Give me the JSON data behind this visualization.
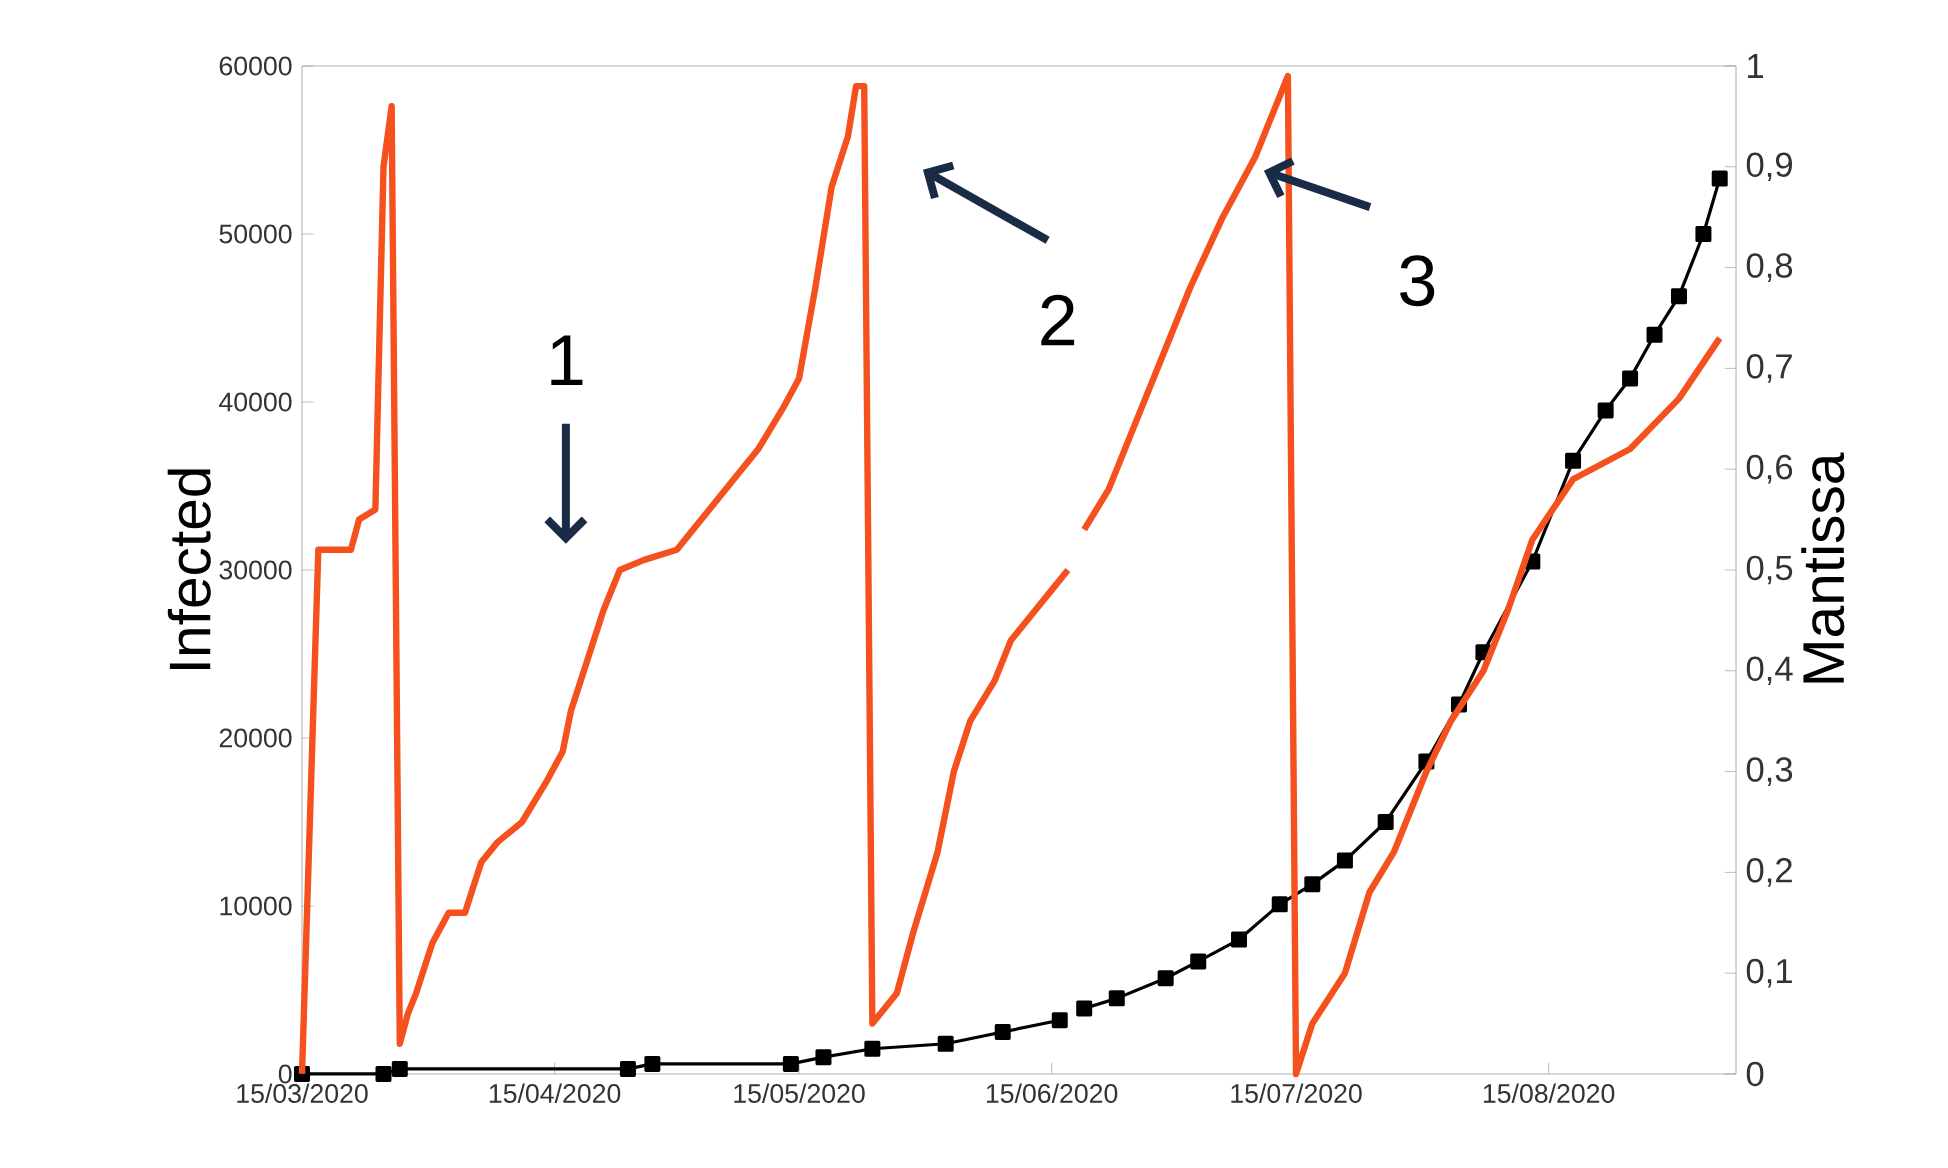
{
  "chart_data": {
    "type": "line",
    "ylabel": "Infected",
    "y2label": "Mantissa",
    "xlim": [
      "2020-03-15",
      "2020-09-07"
    ],
    "xticks": [
      {
        "value": "2020-03-15",
        "label": "15/03/2020"
      },
      {
        "value": "2020-04-15",
        "label": "15/04/2020"
      },
      {
        "value": "2020-05-15",
        "label": "15/05/2020"
      },
      {
        "value": "2020-06-15",
        "label": "15/06/2020"
      },
      {
        "value": "2020-07-15",
        "label": "15/07/2020"
      },
      {
        "value": "2020-08-15",
        "label": "15/08/2020"
      }
    ],
    "ylim": [
      0,
      60000
    ],
    "yticks": [
      0,
      10000,
      20000,
      30000,
      40000,
      50000,
      60000
    ],
    "y2lim": [
      0,
      1
    ],
    "y2ticks": [
      0,
      {
        "value": 0.1,
        "label": "0,1"
      },
      {
        "value": 0.2,
        "label": "0,2"
      },
      {
        "value": 0.3,
        "label": "0,3"
      },
      {
        "value": 0.4,
        "label": "0,4"
      },
      {
        "value": 0.5,
        "label": "0,5"
      },
      {
        "value": 0.6,
        "label": "0,6"
      },
      {
        "value": 0.7,
        "label": "0,7"
      },
      {
        "value": 0.8,
        "label": "0,8"
      },
      {
        "value": 0.9,
        "label": "0,9"
      },
      1
    ],
    "annotations": [
      "1",
      "2",
      {
        "text": "3",
        "x": "2020-07-10",
        "y": 54600
      }
    ],
    "series": [
      {
        "color": "#f4511e",
        "axis": "y2",
        "x": [
          "2020-03-15",
          "2020-03-17",
          "2020-03-21",
          "2020-03-22",
          "2020-03-24",
          "2020-03-25",
          "2020-03-26",
          "2020-03-27",
          "2020-03-28",
          "2020-03-29",
          "2020-03-31",
          "2020-04-02",
          "2020-04-04",
          "2020-04-06",
          "2020-04-08",
          "2020-04-11",
          "2020-04-14",
          "2020-04-16",
          "2020-04-17",
          "2020-04-19",
          "2020-04-21",
          "2020-04-23",
          "2020-04-26",
          "2020-04-30",
          "2020-05-03",
          "2020-05-06",
          "2020-05-10",
          "2020-05-13",
          "2020-05-15",
          "2020-05-17",
          "2020-05-19",
          "2020-05-21",
          "2020-05-22",
          "2020-05-23",
          "2020-05-24",
          "2020-05-27",
          "2020-05-29",
          "2020-06-01",
          "2020-06-03",
          "2020-06-05",
          "2020-06-08",
          "2020-06-10",
          "2020-06-13",
          "2020-06-15",
          "2020-06-17",
          "2020-06-18",
          "2020-06-19",
          "2020-06-22",
          "2020-06-25",
          "2020-06-29",
          "2020-07-02",
          "2020-07-06",
          "2020-07-10",
          "2020-07-13",
          "2020-07-14",
          "2020-07-15",
          "2020-07-17",
          "2020-07-21",
          "2020-07-24",
          "2020-07-27",
          "2020-07-31",
          "2020-08-03",
          "2020-08-07",
          "2020-08-10",
          "2020-08-13",
          "2020-08-18",
          "2020-08-25",
          "2020-08-31",
          "2020-09-05"
        ],
        "values": [
          0,
          0.52,
          0.52,
          0.55,
          0.56,
          0.9,
          0.96,
          0.03,
          0.06,
          0.08,
          0.13,
          0.16,
          0.16,
          0.21,
          0.23,
          0.25,
          0.29,
          0.32,
          0.36,
          0.41,
          0.46,
          0.5,
          0.51,
          0.52,
          0.55,
          0.58,
          0.62,
          0.66,
          0.69,
          0.78,
          0.88,
          0.93,
          0.98,
          0.98,
          0.05,
          0.08,
          0.14,
          0.22,
          0.3,
          0.35,
          0.39,
          0.43,
          0.46,
          0.48,
          0.5,
          null,
          0.54,
          0.58,
          0.64,
          0.72,
          0.78,
          0.85,
          0.91,
          0.97,
          0.99,
          0,
          0.05,
          0.1,
          0.18,
          0.22,
          0.3,
          0.35,
          0.4,
          0.46,
          0.53,
          0.59,
          0.62,
          0.67,
          0.73
        ]
      },
      {
        "color": "#000000",
        "marker": "square",
        "x": [
          "2020-03-15",
          "2020-03-25",
          "2020-03-27",
          "2020-04-24",
          "2020-04-27",
          "2020-05-14",
          "2020-05-18",
          "2020-05-24",
          "2020-06-02",
          "2020-06-09",
          "2020-06-16",
          "2020-06-17",
          "2020-06-19",
          "2020-06-23",
          "2020-06-29",
          "2020-07-03",
          "2020-07-08",
          "2020-07-13",
          "2020-07-17",
          "2020-07-21",
          "2020-07-26",
          "2020-07-31",
          "2020-08-04",
          "2020-08-07",
          "2020-08-13",
          "2020-08-18",
          "2020-08-22",
          "2020-08-25",
          "2020-08-28",
          "2020-08-31",
          "2020-09-03",
          "2020-09-05"
        ],
        "values": [
          0,
          0,
          300,
          300,
          600,
          600,
          1000,
          1500,
          1800,
          2500,
          3200,
          null,
          3900,
          4500,
          5700,
          6700,
          8000,
          10100,
          11300,
          12700,
          15000,
          18600,
          22000,
          25100,
          30500,
          36500,
          39500,
          41400,
          44000,
          46300,
          50000,
          53300
        ]
      }
    ]
  }
}
